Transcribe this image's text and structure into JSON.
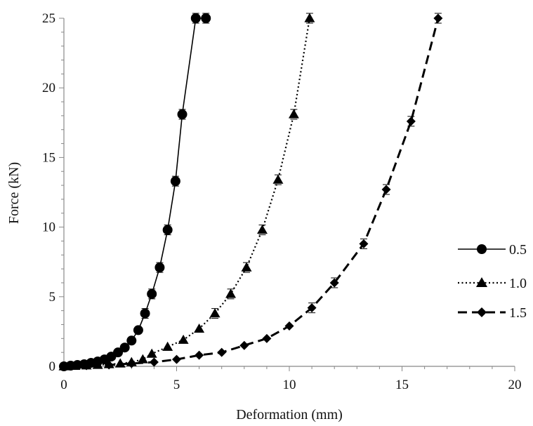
{
  "chart_data": {
    "type": "line",
    "title": "",
    "xlabel": "Deformation (mm)",
    "ylabel": "Force (kN)",
    "xlim": [
      0,
      20
    ],
    "ylim": [
      0,
      25
    ],
    "xticks": [
      "0",
      "5",
      "10",
      "15",
      "20"
    ],
    "yticks": [
      "0",
      "5",
      "10",
      "15",
      "20",
      "25"
    ],
    "grid": false,
    "legend_position": "right",
    "series": [
      {
        "name": "0.5",
        "marker": "circle",
        "line_style": "solid",
        "color": "#000000",
        "x": [
          0.0,
          0.3,
          0.6,
          0.9,
          1.2,
          1.5,
          1.8,
          2.1,
          2.4,
          2.7,
          3.0,
          3.3,
          3.6,
          3.9,
          4.25,
          4.6,
          4.95,
          5.25,
          5.85,
          6.3
        ],
        "y": [
          0.0,
          0.05,
          0.1,
          0.15,
          0.25,
          0.35,
          0.5,
          0.7,
          1.0,
          1.35,
          1.85,
          2.6,
          3.8,
          5.2,
          7.1,
          9.8,
          13.3,
          18.1,
          25.0,
          25.0
        ]
      },
      {
        "name": "1.0",
        "marker": "triangle",
        "line_style": "dotted",
        "color": "#000000",
        "x": [
          0.0,
          0.5,
          1.0,
          1.5,
          2.0,
          2.5,
          3.0,
          3.5,
          3.9,
          4.6,
          5.3,
          6.0,
          6.7,
          7.4,
          8.1,
          8.8,
          9.5,
          10.2,
          10.9
        ],
        "y": [
          0.0,
          0.03,
          0.06,
          0.1,
          0.15,
          0.2,
          0.3,
          0.5,
          0.9,
          1.4,
          1.9,
          2.7,
          3.8,
          5.2,
          7.1,
          9.8,
          13.4,
          18.1,
          25.0
        ]
      },
      {
        "name": "1.5",
        "marker": "diamond",
        "line_style": "dashed",
        "color": "#000000",
        "x": [
          0.0,
          1.0,
          2.0,
          3.0,
          4.0,
          5.0,
          6.0,
          7.0,
          8.0,
          9.0,
          10.0,
          11.0,
          12.0,
          13.3,
          14.3,
          15.4,
          16.6
        ],
        "y": [
          0.0,
          0.05,
          0.1,
          0.2,
          0.3,
          0.5,
          0.8,
          1.0,
          1.5,
          2.0,
          2.9,
          4.2,
          6.0,
          8.8,
          12.7,
          17.6,
          25.0
        ]
      }
    ]
  }
}
